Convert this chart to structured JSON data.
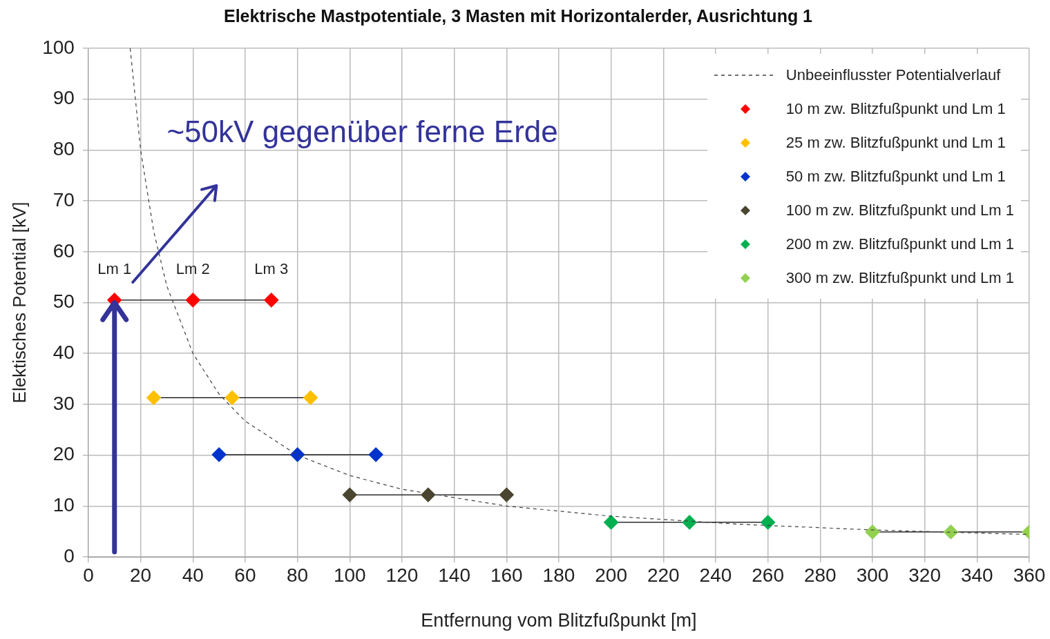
{
  "chart_data": {
    "type": "line",
    "title": "Elektrische Mastpotentiale, 3 Masten mit Horizontalerder, Ausrichtung 1",
    "xlabel": "Entfernung vom Blitzfußpunkt [m]",
    "ylabel": "Elektisches Potential [kV]",
    "xlim": [
      0,
      360
    ],
    "xticks": [
      0,
      20,
      40,
      60,
      80,
      100,
      120,
      140,
      160,
      180,
      200,
      220,
      240,
      260,
      280,
      300,
      320,
      340,
      360
    ],
    "ylim": [
      0,
      100
    ],
    "yticks": [
      0,
      10,
      20,
      30,
      40,
      50,
      60,
      70,
      80,
      90,
      100
    ],
    "grid": true,
    "legend": "top right",
    "series": [
      {
        "name": "Unbeeinflusster Potentialverlauf",
        "color": "#404040",
        "line_style": "dashed",
        "marker": "none",
        "x": [
          16,
          20,
          25,
          30,
          40,
          50,
          60,
          80,
          100,
          120,
          160,
          200,
          250,
          300,
          360
        ],
        "values": [
          100,
          80,
          64,
          53.3,
          40,
          32,
          26.7,
          20,
          16,
          13.3,
          10,
          8,
          6.4,
          5.3,
          4.4
        ]
      },
      {
        "name": "10 m zw. Blitzfußpunkt und Lm 1",
        "color": "#ff0000",
        "marker": "diamond",
        "x": [
          10,
          40,
          70
        ],
        "values": [
          50.5,
          50.5,
          50.5
        ]
      },
      {
        "name": "25 m zw. Blitzfußpunkt und Lm 1",
        "color": "#ffc000",
        "marker": "diamond",
        "x": [
          25,
          55,
          85
        ],
        "values": [
          31.3,
          31.3,
          31.3
        ]
      },
      {
        "name": "50 m zw. Blitzfußpunkt und Lm 1",
        "color": "#0033cc",
        "marker": "diamond",
        "x": [
          50,
          80,
          110
        ],
        "values": [
          20.1,
          20.1,
          20.1
        ]
      },
      {
        "name": "100 m zw. Blitzfußpunkt und Lm 1",
        "color": "#4a4530",
        "marker": "diamond",
        "x": [
          100,
          130,
          160
        ],
        "values": [
          12.2,
          12.2,
          12.2
        ]
      },
      {
        "name": "200 m zw. Blitzfußpunkt und Lm 1",
        "color": "#00b050",
        "marker": "diamond",
        "x": [
          200,
          230,
          260
        ],
        "values": [
          6.8,
          6.8,
          6.8
        ]
      },
      {
        "name": "300 m zw. Blitzfußpunkt und Lm 1",
        "color": "#92d050",
        "marker": "diamond",
        "x": [
          300,
          330,
          360
        ],
        "values": [
          4.9,
          4.9,
          4.9
        ]
      }
    ],
    "annotations": [
      {
        "text": "Lm 1",
        "x": 10,
        "y": 50.5
      },
      {
        "text": "Lm 2",
        "x": 40,
        "y": 50.5
      },
      {
        "text": "Lm 3",
        "x": 70,
        "y": 50.5
      },
      "~50kV gegenüber ferne Erde"
    ]
  }
}
